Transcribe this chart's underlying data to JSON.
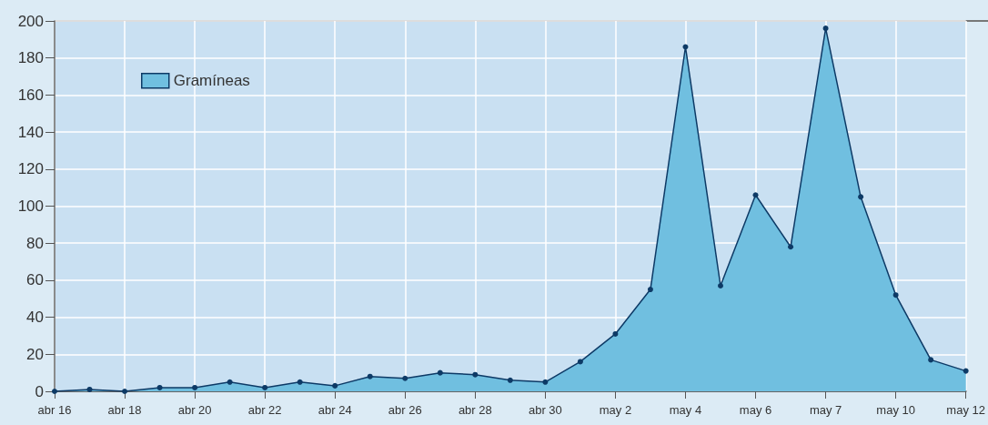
{
  "chart_data": {
    "type": "area",
    "categories": [
      "abr 16",
      null,
      "abr 18",
      null,
      "abr 20",
      null,
      "abr 22",
      null,
      "abr 24",
      null,
      "abr 26",
      null,
      "abr 28",
      null,
      "abr 30",
      null,
      "may 2",
      null,
      "may 4",
      null,
      "may 6",
      null,
      "may 7",
      null,
      "may 10",
      null,
      "may 12"
    ],
    "series": [
      {
        "name": "Gramíneas",
        "color": "#70bfe0",
        "values": [
          0,
          1,
          0,
          2,
          2,
          5,
          2,
          5,
          3,
          8,
          7,
          10,
          9,
          6,
          5,
          16,
          31,
          55,
          186,
          57,
          106,
          78,
          196,
          105,
          52,
          17,
          11
        ]
      }
    ],
    "ylim": [
      0,
      200
    ],
    "yticks": [
      0,
      20,
      40,
      60,
      80,
      100,
      120,
      140,
      160,
      180,
      200
    ],
    "grid": true,
    "legend": "top left",
    "marker": "circle",
    "line_style": "solid"
  }
}
